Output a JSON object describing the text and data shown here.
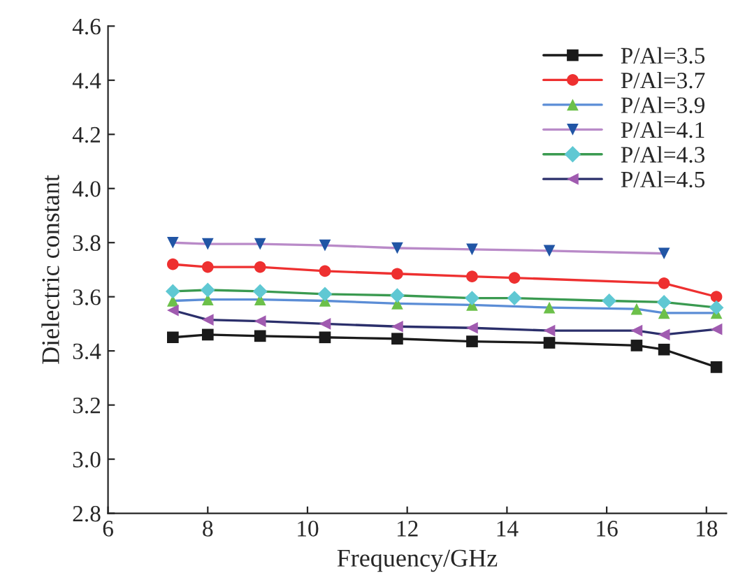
{
  "chart_data": {
    "type": "line",
    "xlabel": "Frequency/GHz",
    "ylabel": "Dielectric constant",
    "xlim": [
      6,
      18.4
    ],
    "xticks": [
      6,
      8,
      10,
      12,
      14,
      16,
      18
    ],
    "ylim": [
      2.8,
      4.6
    ],
    "yticks": [
      2.8,
      {
        "value": 3,
        "label": "3.0"
      },
      3.2,
      3.4,
      3.6,
      3.8,
      {
        "value": 4,
        "label": "4.0"
      },
      4.2,
      4.4,
      4.6
    ],
    "grid": false,
    "legend": "top right",
    "line_style": "solid",
    "series": [
      {
        "name": "P/Al=3.5",
        "color": "#1a1a1a",
        "marker": "square",
        "x": [
          7.3,
          8.0,
          9.05,
          10.35,
          11.8,
          13.3,
          14.85,
          16.6,
          17.15,
          18.2
        ],
        "values": [
          3.45,
          3.46,
          3.455,
          3.45,
          3.445,
          3.435,
          3.43,
          3.42,
          3.405,
          3.34
        ],
        "colors": [
          "#1a1a1a",
          "#1a1a1a",
          "#1a1a1a",
          "#1a1a1a",
          "#1a1a1a",
          "#1a1a1a",
          "#1a1a1a",
          "#1a1a1a",
          "#1a1a1a",
          "#1a1a1a"
        ]
      },
      {
        "name": "P/Al=3.7",
        "color": "#ee3030",
        "marker": "circle",
        "x": [
          7.3,
          8.0,
          9.05,
          10.35,
          11.8,
          13.3,
          14.15,
          17.15,
          18.2
        ],
        "values": [
          3.72,
          3.71,
          3.71,
          3.695,
          3.685,
          3.675,
          3.67,
          3.65,
          3.6
        ],
        "colors": [
          "#ee3030",
          "#ee3030",
          "#ee3030",
          "#ee3030",
          "#ee3030",
          "#ee3030",
          "#ee3030",
          "#ee3030",
          "#ee3030"
        ]
      },
      {
        "name": "P/Al=3.9",
        "color": "#5b8dd6",
        "marker": "triangle",
        "x": [
          7.3,
          8.0,
          9.05,
          10.35,
          11.8,
          13.3,
          14.85,
          16.6,
          17.15,
          18.2
        ],
        "values": [
          3.585,
          3.59,
          3.59,
          3.585,
          3.575,
          3.57,
          3.56,
          3.555,
          3.54,
          3.54
        ],
        "colors": [
          "#6cc04a",
          "#6cc04a",
          "#6cc04a",
          "#6cc04a",
          "#6cc04a",
          "#6cc04a",
          "#6cc04a",
          "#6cc04a",
          "#6cc04a",
          "#6cc04a"
        ]
      },
      {
        "name": "P/Al=4.1",
        "color": "#b98ac8",
        "marker": "triangle_down",
        "x": [
          7.3,
          8.0,
          9.05,
          10.35,
          11.8,
          13.3,
          14.85,
          17.15
        ],
        "values": [
          3.8,
          3.795,
          3.795,
          3.79,
          3.78,
          3.775,
          3.77,
          3.76
        ],
        "colors": [
          "#2155a5",
          "#2155a5",
          "#2155a5",
          "#2155a5",
          "#2155a5",
          "#2155a5",
          "#2155a5",
          "#2155a5"
        ]
      },
      {
        "name": "P/Al=4.3",
        "color": "#3a9a50",
        "marker": "diamond",
        "x": [
          7.3,
          8.0,
          9.05,
          10.35,
          11.8,
          13.3,
          14.15,
          16.05,
          17.15,
          18.2
        ],
        "values": [
          3.62,
          3.625,
          3.62,
          3.61,
          3.605,
          3.595,
          3.595,
          3.585,
          3.58,
          3.56
        ],
        "colors": [
          "#5fc8d3",
          "#5fc8d3",
          "#5fc8d3",
          "#5fc8d3",
          "#5fc8d3",
          "#5fc8d3",
          "#5fc8d3",
          "#5fc8d3",
          "#5fc8d3",
          "#5fc8d3"
        ]
      },
      {
        "name": "P/Al=4.5",
        "color": "#2b2f6b",
        "marker": "triangle_left",
        "x": [
          7.3,
          8.0,
          9.05,
          10.35,
          11.8,
          13.3,
          14.85,
          16.6,
          17.15,
          18.2
        ],
        "values": [
          3.55,
          3.515,
          3.51,
          3.5,
          3.49,
          3.485,
          3.475,
          3.475,
          3.46,
          3.48
        ],
        "colors": [
          "#a05bb0",
          "#a05bb0",
          "#a05bb0",
          "#a05bb0",
          "#a05bb0",
          "#a05bb0",
          "#a05bb0",
          "#a05bb0",
          "#a05bb0",
          "#a05bb0"
        ]
      }
    ]
  }
}
